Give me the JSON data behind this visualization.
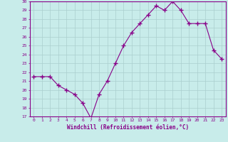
{
  "x": [
    0,
    1,
    2,
    3,
    4,
    5,
    6,
    7,
    8,
    9,
    10,
    11,
    12,
    13,
    14,
    15,
    16,
    17,
    18,
    19,
    20,
    21,
    22,
    23
  ],
  "y": [
    21.5,
    21.5,
    21.5,
    20.5,
    20.0,
    19.5,
    18.5,
    16.8,
    19.5,
    21.0,
    23.0,
    25.0,
    26.5,
    27.5,
    28.5,
    29.5,
    29.0,
    30.0,
    29.0,
    27.5,
    27.5,
    27.5,
    24.5,
    23.5
  ],
  "line_color": "#880088",
  "marker": "+",
  "marker_size": 4,
  "bg_color": "#c8ecea",
  "grid_color": "#aacfce",
  "xlabel": "Windchill (Refroidissement éolien,°C)",
  "xlabel_color": "#880088",
  "tick_color": "#880088",
  "spine_color": "#880088",
  "ylim": [
    17,
    30
  ],
  "xlim": [
    -0.5,
    23.5
  ],
  "yticks": [
    17,
    18,
    19,
    20,
    21,
    22,
    23,
    24,
    25,
    26,
    27,
    28,
    29,
    30
  ],
  "xticks": [
    0,
    1,
    2,
    3,
    4,
    5,
    6,
    7,
    8,
    9,
    10,
    11,
    12,
    13,
    14,
    15,
    16,
    17,
    18,
    19,
    20,
    21,
    22,
    23
  ]
}
